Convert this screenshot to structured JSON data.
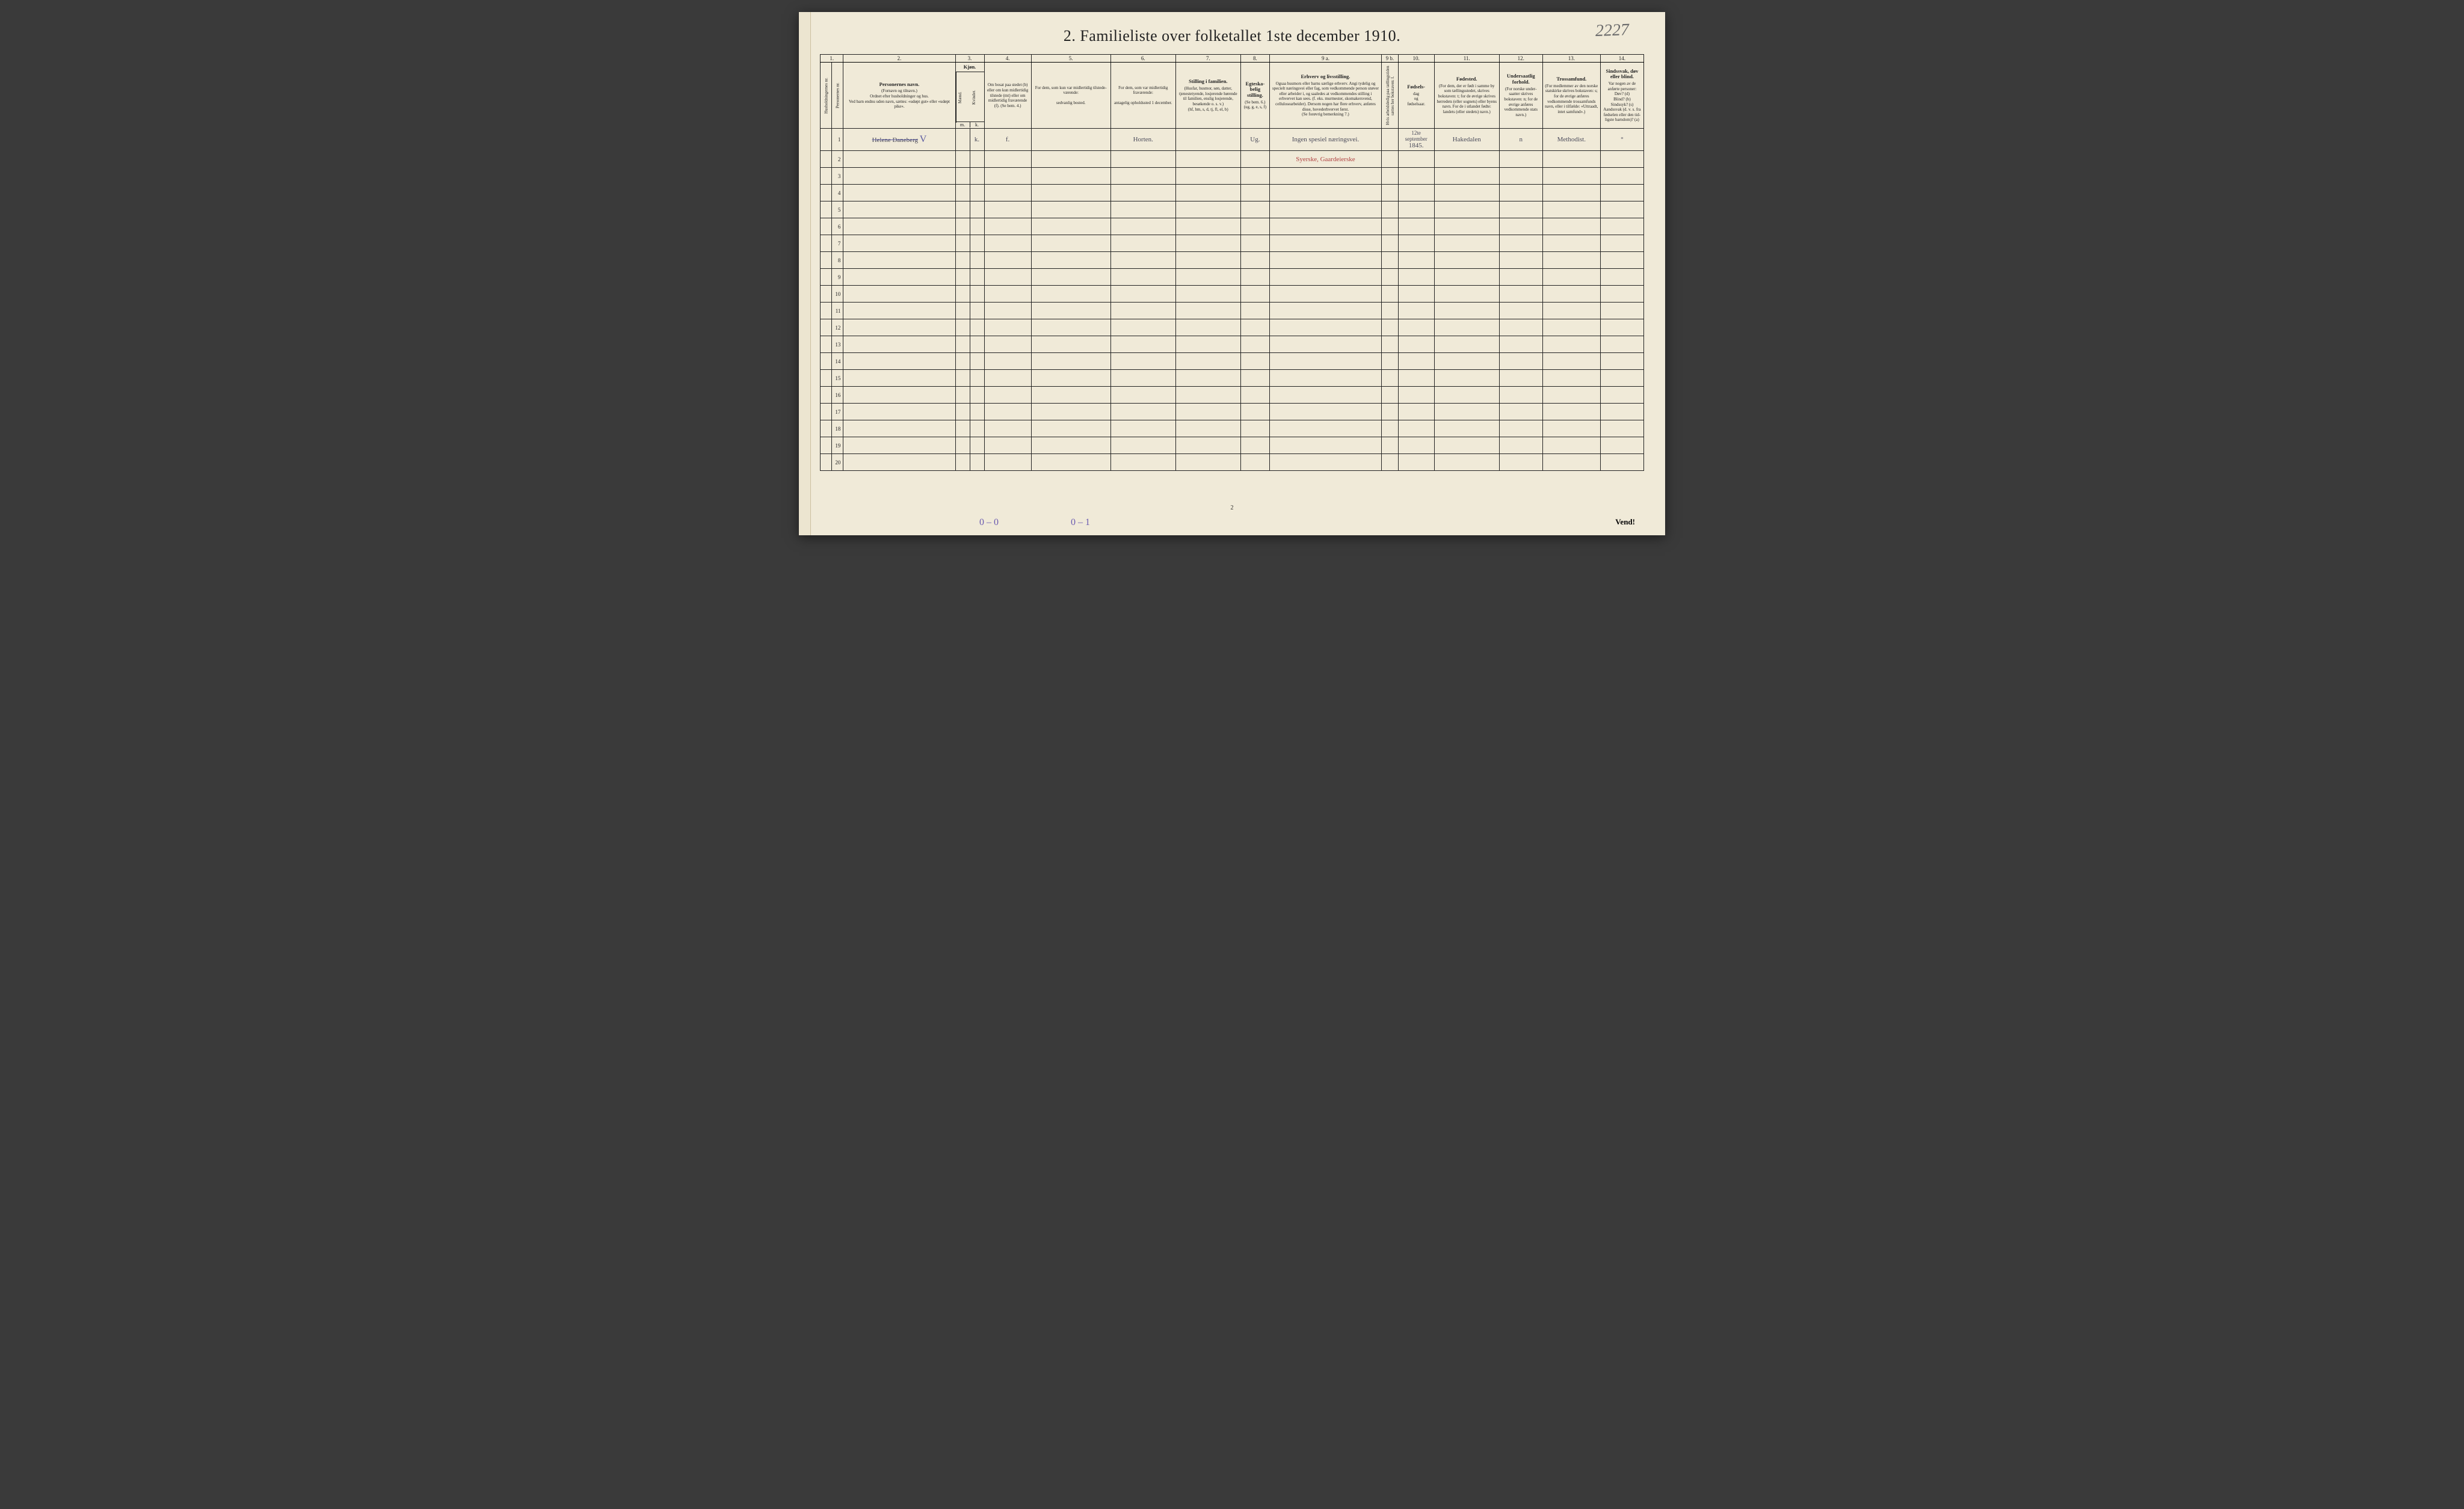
{
  "page": {
    "title": "2.  Familieliste over folketallet 1ste december 1910.",
    "handwritten_topright": "2227",
    "footer_center": "2",
    "footer_right": "Vend!",
    "footer_notes": [
      "0 – 0",
      "0 – 1"
    ],
    "background_color": "#f0ead8",
    "text_color": "#222222",
    "handwriting_color": "#4a4a5a",
    "red_ink_color": "#b04040"
  },
  "columns": {
    "widths_pct": [
      1.6,
      1.6,
      15.5,
      2,
      2,
      6.5,
      11,
      9,
      9,
      4,
      15.5,
      2.3,
      5,
      9,
      6,
      8,
      6
    ],
    "numbers": [
      "1.",
      "",
      "2.",
      "3.",
      "",
      "4.",
      "5.",
      "6.",
      "7.",
      "8.",
      "9 a.",
      "9 b.",
      "10.",
      "11.",
      "12.",
      "13.",
      "14."
    ],
    "headers": [
      {
        "strong": "",
        "text": "Husholdningernes nr.",
        "vertical": true
      },
      {
        "strong": "",
        "text": "Personernes nr.",
        "vertical": true
      },
      {
        "strong": "Personernes navn.",
        "text": "(Fornavn og tilnavn.)\nOrdnet efter husholdninger og hus.\nVed barn endnu uden navn, sættes: «udøpt gut» eller «udøpt pike»."
      },
      {
        "strong": "Kjøn.",
        "text": "",
        "sub": [
          "Mænd.",
          "Kvinder."
        ],
        "sub_abbrev": [
          "m.",
          "k."
        ]
      },
      {
        "strong": "",
        "text": ""
      },
      {
        "strong": "",
        "text": "Om bosat paa stedet (b) eller om kun midler­tidig tilstede (mt) eller om midler­tidig fra­værende (f). (Se bem. 4.)"
      },
      {
        "strong": "",
        "text": "For dem, som kun var midlertidig tilstede­værende:\n\nsedvanlig bosted."
      },
      {
        "strong": "",
        "text": "For dem, som var midlertidig fraværende:\n\nantagelig opholdssted 1 december."
      },
      {
        "strong": "Stilling i familien.",
        "text": "(Husfar, husmor, søn, datter, tjenestetyende, lo­sjerende hørende til familien, enslig losjerende, besøkende o. s. v.)\n(hf, hm, s, d, tj, fl, el, b)"
      },
      {
        "strong": "Egteska­belig stilling.",
        "text": "(Se bem. 6.)\n(ug, g, e, s, f)"
      },
      {
        "strong": "Erhverv og livsstilling.",
        "text": "Ogsaa husmors eller barns særlige erhverv. Angi tydelig og specielt næringsvei eller fag, som vedkommende person utøver eller arbeider i, og saaledes at vedkommendes stilling i erhvervet kan sees. (f. eks. murmester, skomakersvend, cellulose­arbeider). Dersom nogen har flere erhverv, anføres disse, hovederhvervet først.\n(Se forøvrig bemerkning 7.)"
      },
      {
        "strong": "",
        "text": "Hvis arbeidsledig paa tællingstiden sættes her bokstaven: l.",
        "vertical": true
      },
      {
        "strong": "Fødsels-",
        "text": "dag\nog\nfødsels­aar."
      },
      {
        "strong": "Fødested.",
        "text": "(For dem, der er født i samme by som tællingsstedet, skrives bokstaven: t; for de øvrige skrives herredets (eller sognets) eller byens navn. For de i utlandet fødte: landets (eller stedets) navn.)"
      },
      {
        "strong": "Undersaatlig forhold.",
        "text": "(For norske under­saatter skrives bokstaven: n; for de øvrige anføres vedkom­mende stats navn.)"
      },
      {
        "strong": "Trossamfund.",
        "text": "(For medlemmer av den norske statskirke skrives bokstaven: s; for de øvrige anføres vedkommende tros­samfunds navn, eller i til­fælde: «Uttraadt, intet samfund».)"
      },
      {
        "strong": "Sindssvak, døv eller blind.",
        "text": "Var nogen av de anførte personer:\nDøv?     (d)\nBlind?   (b)\nSindssyk? (s)\nAandssvak (d. v. s. fra fødselen eller den tid­ligste barndom)? (a)"
      }
    ]
  },
  "rows": [
    {
      "n1": "1",
      "n2": "",
      "name": "Helene Daneberg",
      "name_strike": true,
      "name_mark": "V",
      "m": "",
      "k": "k.",
      "bosat": "f.",
      "bosted": "",
      "fravær": "Horten.",
      "stilling": "",
      "egte": "Ug.",
      "erhverv": "Ingen spesiel næringsvei.",
      "erhverv2": "Syerske, Gaardeierske",
      "erhverv2_red": true,
      "ledig": "",
      "fdag": "12te september",
      "faar": "1845.",
      "fsted": "Hakedalen",
      "under": "n",
      "tros": "Methodist.",
      "sind": "°"
    }
  ],
  "empty_row_count": 19
}
